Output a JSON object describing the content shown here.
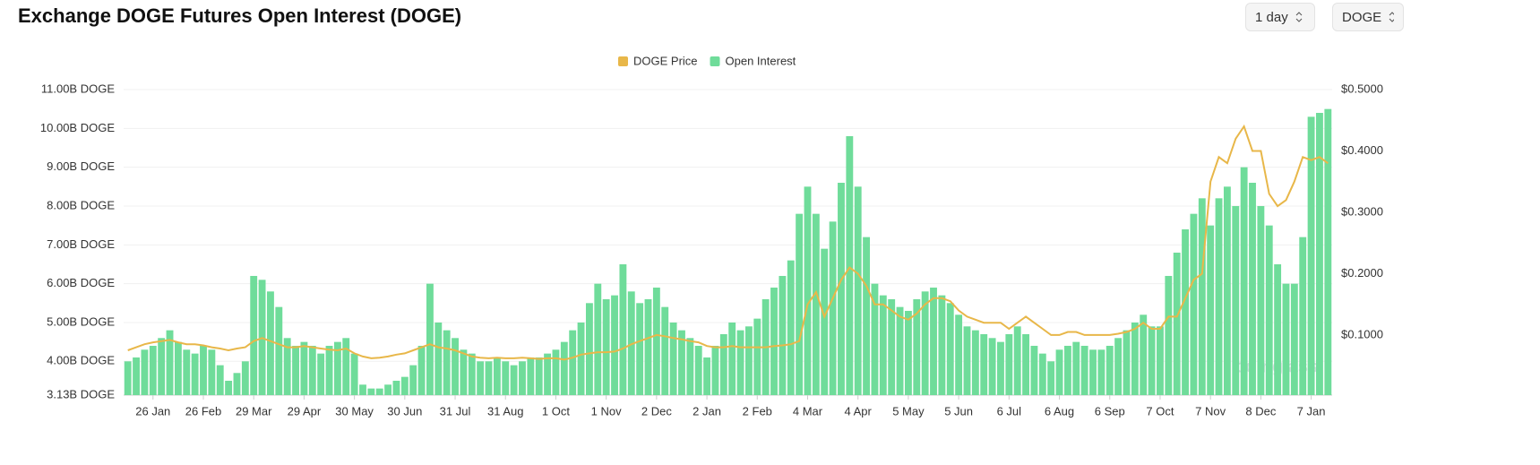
{
  "title": "Exchange DOGE Futures Open Interest (DOGE)",
  "controls": [
    "1 day",
    "DOGE"
  ],
  "watermark": "coinglass",
  "chart_data": {
    "type": "bar",
    "grid": true,
    "legend": "top",
    "categories": [
      null,
      null,
      null,
      "26 Jan",
      null,
      null,
      null,
      null,
      null,
      "26 Feb",
      null,
      null,
      null,
      null,
      null,
      "29 Mar",
      null,
      null,
      null,
      null,
      null,
      "29 Apr",
      null,
      null,
      null,
      null,
      null,
      "30 May",
      null,
      null,
      null,
      null,
      null,
      "30 Jun",
      null,
      null,
      null,
      null,
      null,
      "31 Jul",
      null,
      null,
      null,
      null,
      null,
      "31 Aug",
      null,
      null,
      null,
      null,
      null,
      "1 Oct",
      null,
      null,
      null,
      null,
      null,
      "1 Nov",
      null,
      null,
      null,
      null,
      null,
      "2 Dec",
      null,
      null,
      null,
      null,
      null,
      "2 Jan",
      null,
      null,
      null,
      null,
      null,
      "2 Feb",
      null,
      null,
      null,
      null,
      null,
      "4 Mar",
      null,
      null,
      null,
      null,
      null,
      "4 Apr",
      null,
      null,
      null,
      null,
      null,
      "5 May",
      null,
      null,
      null,
      null,
      null,
      "5 Jun",
      null,
      null,
      null,
      null,
      null,
      "6 Jul",
      null,
      null,
      null,
      null,
      null,
      "6 Aug",
      null,
      null,
      null,
      null,
      null,
      "6 Sep",
      null,
      null,
      null,
      null,
      null,
      "7 Oct",
      null,
      null,
      null,
      null,
      null,
      "7 Nov",
      null,
      null,
      null,
      null,
      null,
      "8 Dec",
      null,
      null,
      null,
      null,
      null,
      "7 Jan",
      null,
      null
    ],
    "ylim": [
      3.13,
      11
    ],
    "yticks": [
      {
        "value": 3.13,
        "label": "3.13B DOGE"
      },
      {
        "value": 4,
        "label": "4.00B DOGE"
      },
      {
        "value": 5,
        "label": "5.00B DOGE"
      },
      {
        "value": 6,
        "label": "6.00B DOGE"
      },
      {
        "value": 7,
        "label": "7.00B DOGE"
      },
      {
        "value": 8,
        "label": "8.00B DOGE"
      },
      {
        "value": 9,
        "label": "9.00B DOGE"
      },
      {
        "value": 10,
        "label": "10.00B DOGE"
      },
      {
        "value": 11,
        "label": "11.00B DOGE"
      }
    ],
    "y2lim": [
      0.002,
      0.5
    ],
    "y2ticks": [
      {
        "value": 0.1,
        "label": "$0.1000"
      },
      {
        "value": 0.2,
        "label": "$0.2000"
      },
      {
        "value": 0.3,
        "label": "$0.3000"
      },
      {
        "value": 0.4,
        "label": "$0.4000"
      },
      {
        "value": 0.5,
        "label": "$0.5000"
      }
    ],
    "series": [
      {
        "name": "DOGE Price",
        "type": "line",
        "axis": "y2",
        "color": "#e8b749",
        "values": [
          0.075,
          0.08,
          0.085,
          0.088,
          0.09,
          0.092,
          0.088,
          0.085,
          0.085,
          0.083,
          0.08,
          0.078,
          0.075,
          0.078,
          0.08,
          0.09,
          0.095,
          0.09,
          0.085,
          0.08,
          0.08,
          0.082,
          0.08,
          0.078,
          0.076,
          0.075,
          0.078,
          0.07,
          0.065,
          0.062,
          0.063,
          0.065,
          0.068,
          0.07,
          0.075,
          0.08,
          0.085,
          0.08,
          0.078,
          0.075,
          0.07,
          0.065,
          0.063,
          0.062,
          0.063,
          0.062,
          0.062,
          0.063,
          0.062,
          0.061,
          0.062,
          0.062,
          0.06,
          0.063,
          0.068,
          0.07,
          0.072,
          0.072,
          0.073,
          0.078,
          0.085,
          0.09,
          0.095,
          0.1,
          0.098,
          0.095,
          0.093,
          0.09,
          0.088,
          0.082,
          0.08,
          0.08,
          0.082,
          0.08,
          0.08,
          0.08,
          0.08,
          0.082,
          0.083,
          0.085,
          0.09,
          0.15,
          0.17,
          0.13,
          0.16,
          0.19,
          0.21,
          0.2,
          0.18,
          0.15,
          0.15,
          0.14,
          0.13,
          0.125,
          0.135,
          0.15,
          0.16,
          0.16,
          0.155,
          0.14,
          0.13,
          0.125,
          0.12,
          0.12,
          0.12,
          0.11,
          0.12,
          0.13,
          0.12,
          0.11,
          0.1,
          0.1,
          0.105,
          0.105,
          0.1,
          0.1,
          0.1,
          0.1,
          0.102,
          0.105,
          0.11,
          0.12,
          0.11,
          0.11,
          0.13,
          0.13,
          0.16,
          0.19,
          0.2,
          0.35,
          0.39,
          0.38,
          0.42,
          0.44,
          0.4,
          0.4,
          0.33,
          0.31,
          0.32,
          0.35,
          0.39,
          0.385,
          0.39,
          0.38
        ]
      },
      {
        "name": "Open Interest",
        "color": "#6fdc9a",
        "values": [
          4.0,
          4.1,
          4.3,
          4.4,
          4.6,
          4.8,
          4.5,
          4.3,
          4.2,
          4.4,
          4.3,
          3.9,
          3.5,
          3.7,
          4.0,
          6.2,
          6.1,
          5.8,
          5.4,
          4.6,
          4.4,
          4.5,
          4.4,
          4.2,
          4.4,
          4.5,
          4.6,
          4.2,
          3.4,
          3.3,
          3.3,
          3.4,
          3.5,
          3.6,
          3.9,
          4.4,
          6.0,
          5.0,
          4.8,
          4.6,
          4.3,
          4.2,
          4.0,
          4.0,
          4.1,
          4.0,
          3.9,
          4.0,
          4.1,
          4.1,
          4.2,
          4.3,
          4.5,
          4.8,
          5.0,
          5.5,
          6.0,
          5.6,
          5.7,
          6.5,
          5.8,
          5.5,
          5.6,
          5.9,
          5.4,
          5.0,
          4.8,
          4.6,
          4.4,
          4.1,
          4.4,
          4.7,
          5.0,
          4.8,
          4.9,
          5.1,
          5.6,
          5.9,
          6.2,
          6.6,
          7.8,
          8.5,
          7.8,
          6.9,
          7.6,
          8.6,
          9.8,
          8.5,
          7.2,
          6.0,
          5.7,
          5.6,
          5.4,
          5.3,
          5.6,
          5.8,
          5.9,
          5.7,
          5.5,
          5.2,
          4.9,
          4.8,
          4.7,
          4.6,
          4.5,
          4.7,
          4.9,
          4.7,
          4.4,
          4.2,
          4.0,
          4.3,
          4.4,
          4.5,
          4.4,
          4.3,
          4.3,
          4.4,
          4.6,
          4.8,
          5.0,
          5.2,
          4.9,
          4.9,
          6.2,
          6.8,
          7.4,
          7.8,
          8.2,
          7.5,
          8.2,
          8.5,
          8.0,
          9.0,
          8.6,
          8.0,
          7.5,
          6.5,
          6.0,
          6.0,
          7.2,
          10.3,
          10.4,
          10.5
        ]
      }
    ]
  }
}
